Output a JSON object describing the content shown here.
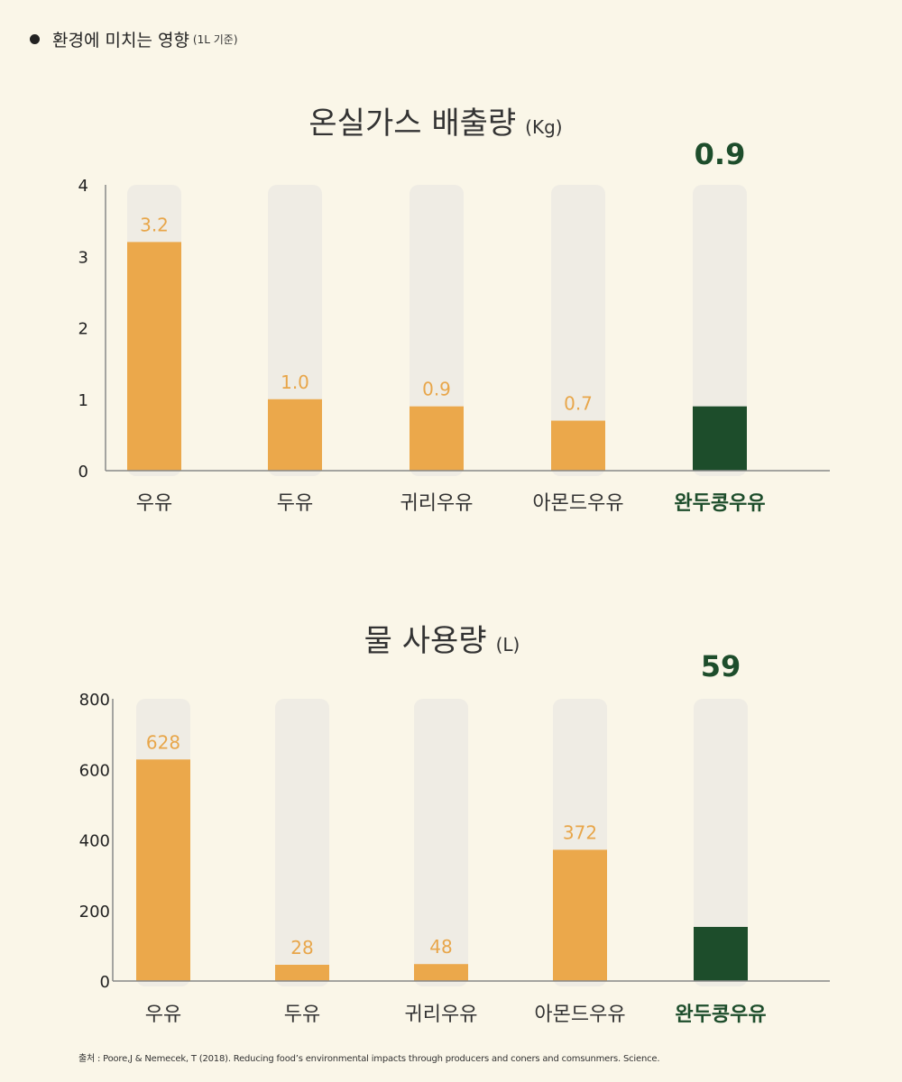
{
  "header": {
    "title": "환경에 미치는 영향",
    "subtitle": "(1L 기준)"
  },
  "colors": {
    "background": "#faf6e8",
    "track": "#efece4",
    "bar": "#eba84b",
    "highlight": "#1d4d2b",
    "axis": "#888888"
  },
  "chart_data": [
    {
      "type": "bar",
      "title": "온실가스 배출량",
      "unit": "(Kg)",
      "categories": [
        "우유",
        "두유",
        "귀리우유",
        "아몬드우유",
        "완두콩우유"
      ],
      "values": [
        3.2,
        1.0,
        0.9,
        0.7,
        0.9
      ],
      "value_labels": [
        "3.2",
        "1.0",
        "0.9",
        "0.7",
        "0.9"
      ],
      "highlight_index": 4,
      "ylim": [
        0,
        4
      ],
      "yticks": [
        0,
        1,
        2,
        3,
        4
      ],
      "tick_labels": [
        "0",
        "1",
        "2",
        "3",
        "4"
      ],
      "grid": false,
      "legend": "none"
    },
    {
      "type": "bar",
      "title": "물 사용량",
      "unit": "(L)",
      "categories": [
        "우유",
        "두유",
        "귀리우유",
        "아몬드우유",
        "완두콩우유"
      ],
      "values": [
        628,
        28,
        48,
        372,
        59
      ],
      "value_labels": [
        "628",
        "28",
        "48",
        "372",
        "59"
      ],
      "highlight_index": 4,
      "ylim": [
        0,
        800
      ],
      "yticks": [
        0,
        200,
        400,
        600,
        800
      ],
      "tick_labels": [
        "0",
        "200",
        "400",
        "600",
        "800"
      ],
      "grid": false,
      "legend": "none"
    }
  ],
  "source": "출처 : Poore,J & Nemecek, T (2018). Reducing food’s environmental impacts through producers and coners and comsunmers. Science."
}
